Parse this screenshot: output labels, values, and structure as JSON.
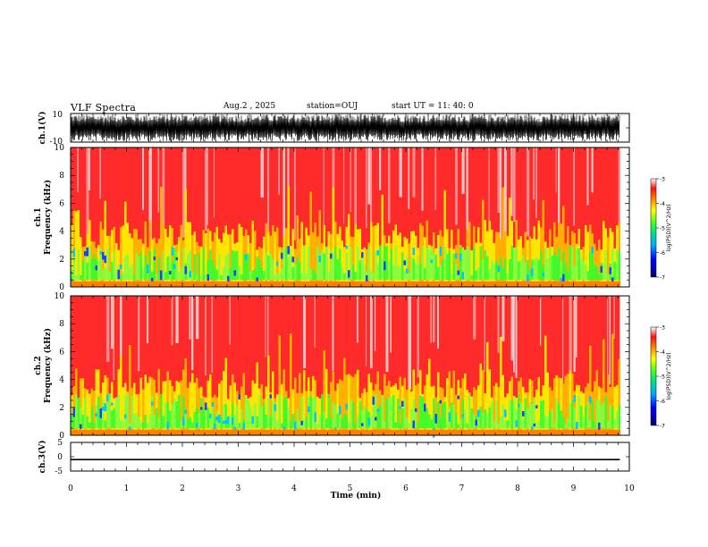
{
  "header": {
    "title": "VLF Spectra",
    "date": "Aug.2 , 2025",
    "station": "station=OUJ",
    "start": "start UT = 11: 40: 0"
  },
  "chart_data": [
    {
      "type": "line",
      "name": "ch1-waveform",
      "ylabel": "ch.1(V)",
      "ylim": [
        -10,
        10
      ],
      "yticks": [
        10,
        -10
      ],
      "xlim": [
        0,
        10
      ],
      "description_values": "dense oscillating waveform spanning roughly -8 to +8 V over 0-9.8 min"
    },
    {
      "type": "heatmap",
      "name": "ch1-spectrogram",
      "ylabel": "ch.1 Frequency (kHz)",
      "ylim": [
        0,
        10
      ],
      "yticks": [
        0,
        2,
        4,
        6,
        8,
        10
      ],
      "xlim": [
        0,
        9.83
      ],
      "colorbar": {
        "label": "log(PSD)(V^2/Hz)",
        "range": [
          -7,
          -3
        ],
        "ticks": [
          -3,
          -4,
          -5,
          -6,
          -7
        ]
      }
    },
    {
      "type": "heatmap",
      "name": "ch2-spectrogram",
      "ylabel": "ch.2 Frequency (kHz)",
      "ylim": [
        0,
        10
      ],
      "yticks": [
        0,
        2,
        4,
        6,
        8,
        10
      ],
      "xlim": [
        0,
        9.83
      ],
      "colorbar": {
        "label": "log(PSD)(V^2/Hz)",
        "range": [
          -7,
          -3
        ],
        "ticks": [
          -3,
          -4,
          -5,
          -6,
          -7
        ]
      }
    },
    {
      "type": "line",
      "name": "ch3-waveform",
      "ylabel": "ch.3(V)",
      "ylim": [
        -5,
        5
      ],
      "yticks": [
        5,
        0,
        -5
      ],
      "xlim": [
        0,
        10
      ],
      "x": [
        0,
        9.83
      ],
      "y": [
        -1,
        -1
      ]
    }
  ],
  "xaxis": {
    "label": "Time (min)",
    "ticks": [
      0,
      1,
      2,
      3,
      4,
      5,
      6,
      7,
      8,
      9,
      10
    ],
    "range": [
      0,
      10
    ]
  },
  "colors": {
    "background": "#ffffff",
    "axis": "#000000",
    "high": "#ff2020",
    "mid": "#ffe000",
    "low": "#20e040",
    "lower": "#00a8ff",
    "lowest": "#0000a0"
  }
}
